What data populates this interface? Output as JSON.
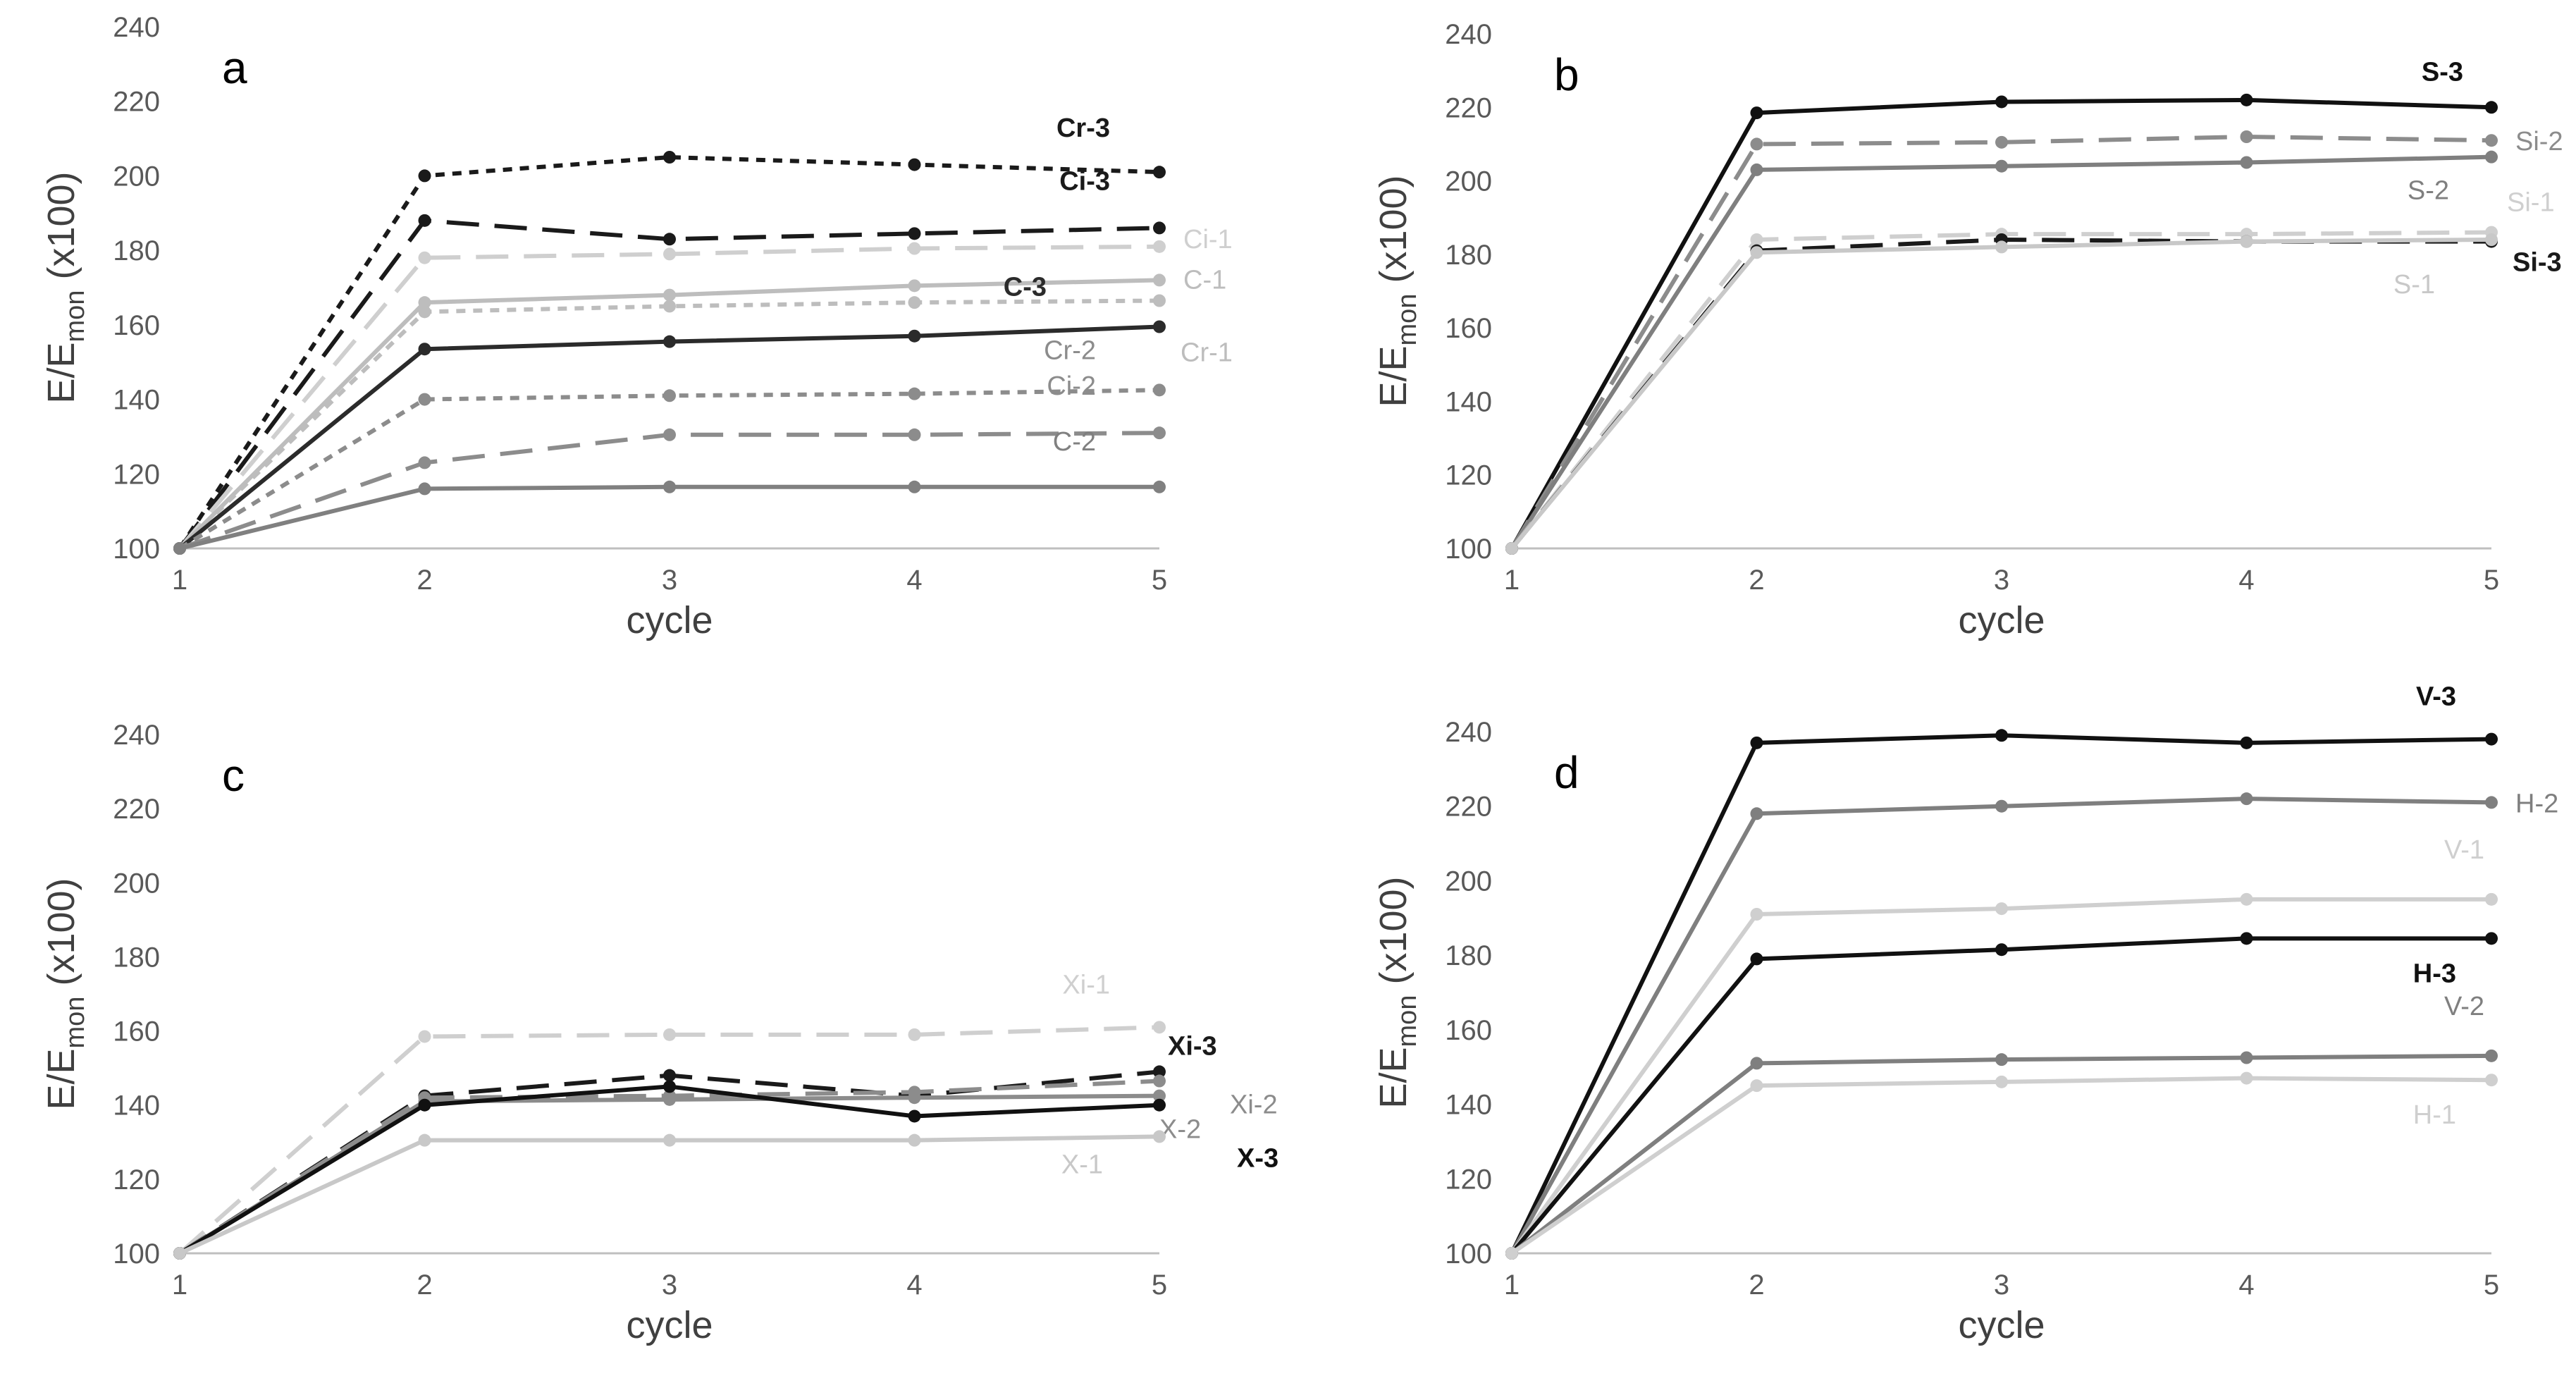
{
  "chart_data": [
    {
      "panel_label": "a",
      "type": "line",
      "x": [
        1,
        2,
        3,
        4,
        5
      ],
      "xlabel": "cycle",
      "ylabel_main": "E/E",
      "ylabel_sub": "mon",
      "ylabel_suffix": " (x100)",
      "ylim": [
        100,
        240
      ],
      "yticks": [
        100,
        120,
        140,
        160,
        180,
        200,
        220,
        240
      ],
      "xticks": [
        1,
        2,
        3,
        4,
        5
      ],
      "grid": false,
      "series": [
        {
          "name": "Cr-3",
          "values": [
            100,
            200,
            205,
            203,
            201
          ],
          "color": "#1a1a1a",
          "dash": "dot",
          "label_bold": true,
          "label_pos": "above"
        },
        {
          "name": "Ci-3",
          "values": [
            100,
            188,
            183,
            184.5,
            186
          ],
          "color": "#1a1a1a",
          "dash": "long",
          "label_bold": true,
          "label_pos": "above"
        },
        {
          "name": "Ci-1",
          "values": [
            100,
            178,
            179,
            180.5,
            181
          ],
          "color": "#cfcfcf",
          "dash": "long",
          "label_bold": false,
          "label_pos": "right"
        },
        {
          "name": "C-1",
          "values": [
            100,
            166,
            168,
            170.5,
            172
          ],
          "color": "#bdbdbd",
          "dash": "solid",
          "label_bold": false,
          "label_pos": "right"
        },
        {
          "name": "Cr-1",
          "values": [
            100,
            163.5,
            165,
            166,
            166.5
          ],
          "color": "#bdbdbd",
          "dash": "dot",
          "label_bold": false,
          "label_pos": "right-below"
        },
        {
          "name": "C-3",
          "values": [
            100,
            153.5,
            155.5,
            157,
            159.5
          ],
          "color": "#2b2b2b",
          "dash": "solid",
          "label_bold": true,
          "label_pos": "above-left"
        },
        {
          "name": "Cr-2",
          "values": [
            100,
            140,
            141,
            141.5,
            142.5
          ],
          "color": "#8c8c8c",
          "dash": "dot",
          "label_bold": false,
          "label_pos": "above-left"
        },
        {
          "name": "Ci-2",
          "values": [
            100,
            123,
            130.5,
            130.5,
            131
          ],
          "color": "#8c8c8c",
          "dash": "long",
          "label_bold": false,
          "label_pos": "above-left"
        },
        {
          "name": "C-2",
          "values": [
            100,
            116,
            116.5,
            116.5,
            116.5
          ],
          "color": "#808080",
          "dash": "solid",
          "label_bold": false,
          "label_pos": "above-left"
        }
      ]
    },
    {
      "panel_label": "b",
      "type": "line",
      "x": [
        1,
        2,
        3,
        4,
        5
      ],
      "xlabel": "cycle",
      "ylabel_main": "E/E",
      "ylabel_sub": "mon",
      "ylabel_suffix": " (x100)",
      "ylim": [
        100,
        240
      ],
      "yticks": [
        100,
        120,
        140,
        160,
        180,
        200,
        220,
        240
      ],
      "xticks": [
        1,
        2,
        3,
        4,
        5
      ],
      "grid": false,
      "series": [
        {
          "name": "S-3",
          "values": [
            100,
            218.5,
            221.5,
            222,
            220
          ],
          "color": "#111111",
          "dash": "solid",
          "label_bold": true,
          "label_pos": "above-left"
        },
        {
          "name": "Si-2",
          "values": [
            100,
            210,
            210.5,
            212,
            211
          ],
          "color": "#8c8c8c",
          "dash": "long",
          "label_bold": false,
          "label_pos": "right"
        },
        {
          "name": "S-2",
          "values": [
            100,
            203,
            204,
            205,
            206.5
          ],
          "color": "#7f7f7f",
          "dash": "solid",
          "label_bold": false,
          "label_pos": "below-left"
        },
        {
          "name": "Si-1",
          "values": [
            100,
            184,
            185.5,
            185.5,
            186
          ],
          "color": "#cfcfcf",
          "dash": "long",
          "label_bold": false,
          "label_pos": "right-above"
        },
        {
          "name": "Si-3",
          "values": [
            100,
            181,
            184,
            183.5,
            183.5
          ],
          "color": "#1a1a1a",
          "dash": "long",
          "label_bold": true,
          "label_pos": "right-below"
        },
        {
          "name": "S-1",
          "values": [
            100,
            180.5,
            182,
            183.5,
            184
          ],
          "color": "#c8c8c8",
          "dash": "solid",
          "label_bold": false,
          "label_pos": "below-left"
        }
      ]
    },
    {
      "panel_label": "c",
      "type": "line",
      "x": [
        1,
        2,
        3,
        4,
        5
      ],
      "xlabel": "cycle",
      "ylabel_main": "E/E",
      "ylabel_sub": "mon",
      "ylabel_suffix": " (x100)",
      "ylim": [
        100,
        240
      ],
      "yticks": [
        100,
        120,
        140,
        160,
        180,
        200,
        220,
        240
      ],
      "xticks": [
        1,
        2,
        3,
        4,
        5
      ],
      "grid": false,
      "series": [
        {
          "name": "Xi-1",
          "values": [
            100,
            158.5,
            159,
            159,
            161
          ],
          "color": "#cfcfcf",
          "dash": "long",
          "label_bold": false,
          "label_pos": "above-left"
        },
        {
          "name": "Xi-3",
          "values": [
            100,
            142.5,
            148,
            142.5,
            149
          ],
          "color": "#1a1a1a",
          "dash": "long",
          "label_bold": true,
          "label_pos": "right-above"
        },
        {
          "name": "Xi-2",
          "values": [
            100,
            142,
            142.5,
            143.5,
            146.5
          ],
          "color": "#8c8c8c",
          "dash": "long",
          "label_bold": false,
          "label_pos": "right-below"
        },
        {
          "name": "X-2",
          "values": [
            100,
            141,
            141.5,
            142,
            142.5
          ],
          "color": "#8c8c8c",
          "dash": "solid",
          "label_bold": false,
          "label_pos": "right-low"
        },
        {
          "name": "X-3",
          "values": [
            100,
            140,
            145,
            137,
            140
          ],
          "color": "#111111",
          "dash": "solid",
          "label_bold": true,
          "label_pos": "right-lower"
        },
        {
          "name": "X-1",
          "values": [
            100,
            130.5,
            130.5,
            130.5,
            131.5
          ],
          "color": "#c8c8c8",
          "dash": "solid",
          "label_bold": false,
          "label_pos": "below-left"
        }
      ]
    },
    {
      "panel_label": "d",
      "type": "line",
      "x": [
        1,
        2,
        3,
        4,
        5
      ],
      "xlabel": "cycle",
      "ylabel_main": "E/E",
      "ylabel_sub": "mon",
      "ylabel_suffix": " (x100)",
      "ylim": [
        100,
        240
      ],
      "yticks": [
        100,
        120,
        140,
        160,
        180,
        200,
        220,
        240
      ],
      "xticks": [
        1,
        2,
        3,
        4,
        5
      ],
      "grid": false,
      "series": [
        {
          "name": "V-3",
          "values": [
            100,
            237,
            239,
            237,
            238
          ],
          "color": "#111111",
          "dash": "solid",
          "label_bold": true,
          "label_pos": "above-left"
        },
        {
          "name": "H-2",
          "values": [
            100,
            218,
            220,
            222,
            221
          ],
          "color": "#7f7f7f",
          "dash": "solid",
          "label_bold": false,
          "label_pos": "right"
        },
        {
          "name": "V-1",
          "values": [
            100,
            191,
            192.5,
            195,
            195
          ],
          "color": "#cfcfcf",
          "dash": "solid",
          "label_bold": false,
          "label_pos": "above"
        },
        {
          "name": "H-3",
          "values": [
            100,
            179,
            181.5,
            184.5,
            184.5
          ],
          "color": "#111111",
          "dash": "solid",
          "label_bold": true,
          "label_pos": "below-left"
        },
        {
          "name": "V-2",
          "values": [
            100,
            151,
            152,
            152.5,
            153
          ],
          "color": "#7f7f7f",
          "dash": "solid",
          "label_bold": false,
          "label_pos": "above"
        },
        {
          "name": "H-1",
          "values": [
            100,
            145,
            146,
            147,
            146.5
          ],
          "color": "#cfcfcf",
          "dash": "solid",
          "label_bold": false,
          "label_pos": "below-left"
        }
      ]
    }
  ]
}
